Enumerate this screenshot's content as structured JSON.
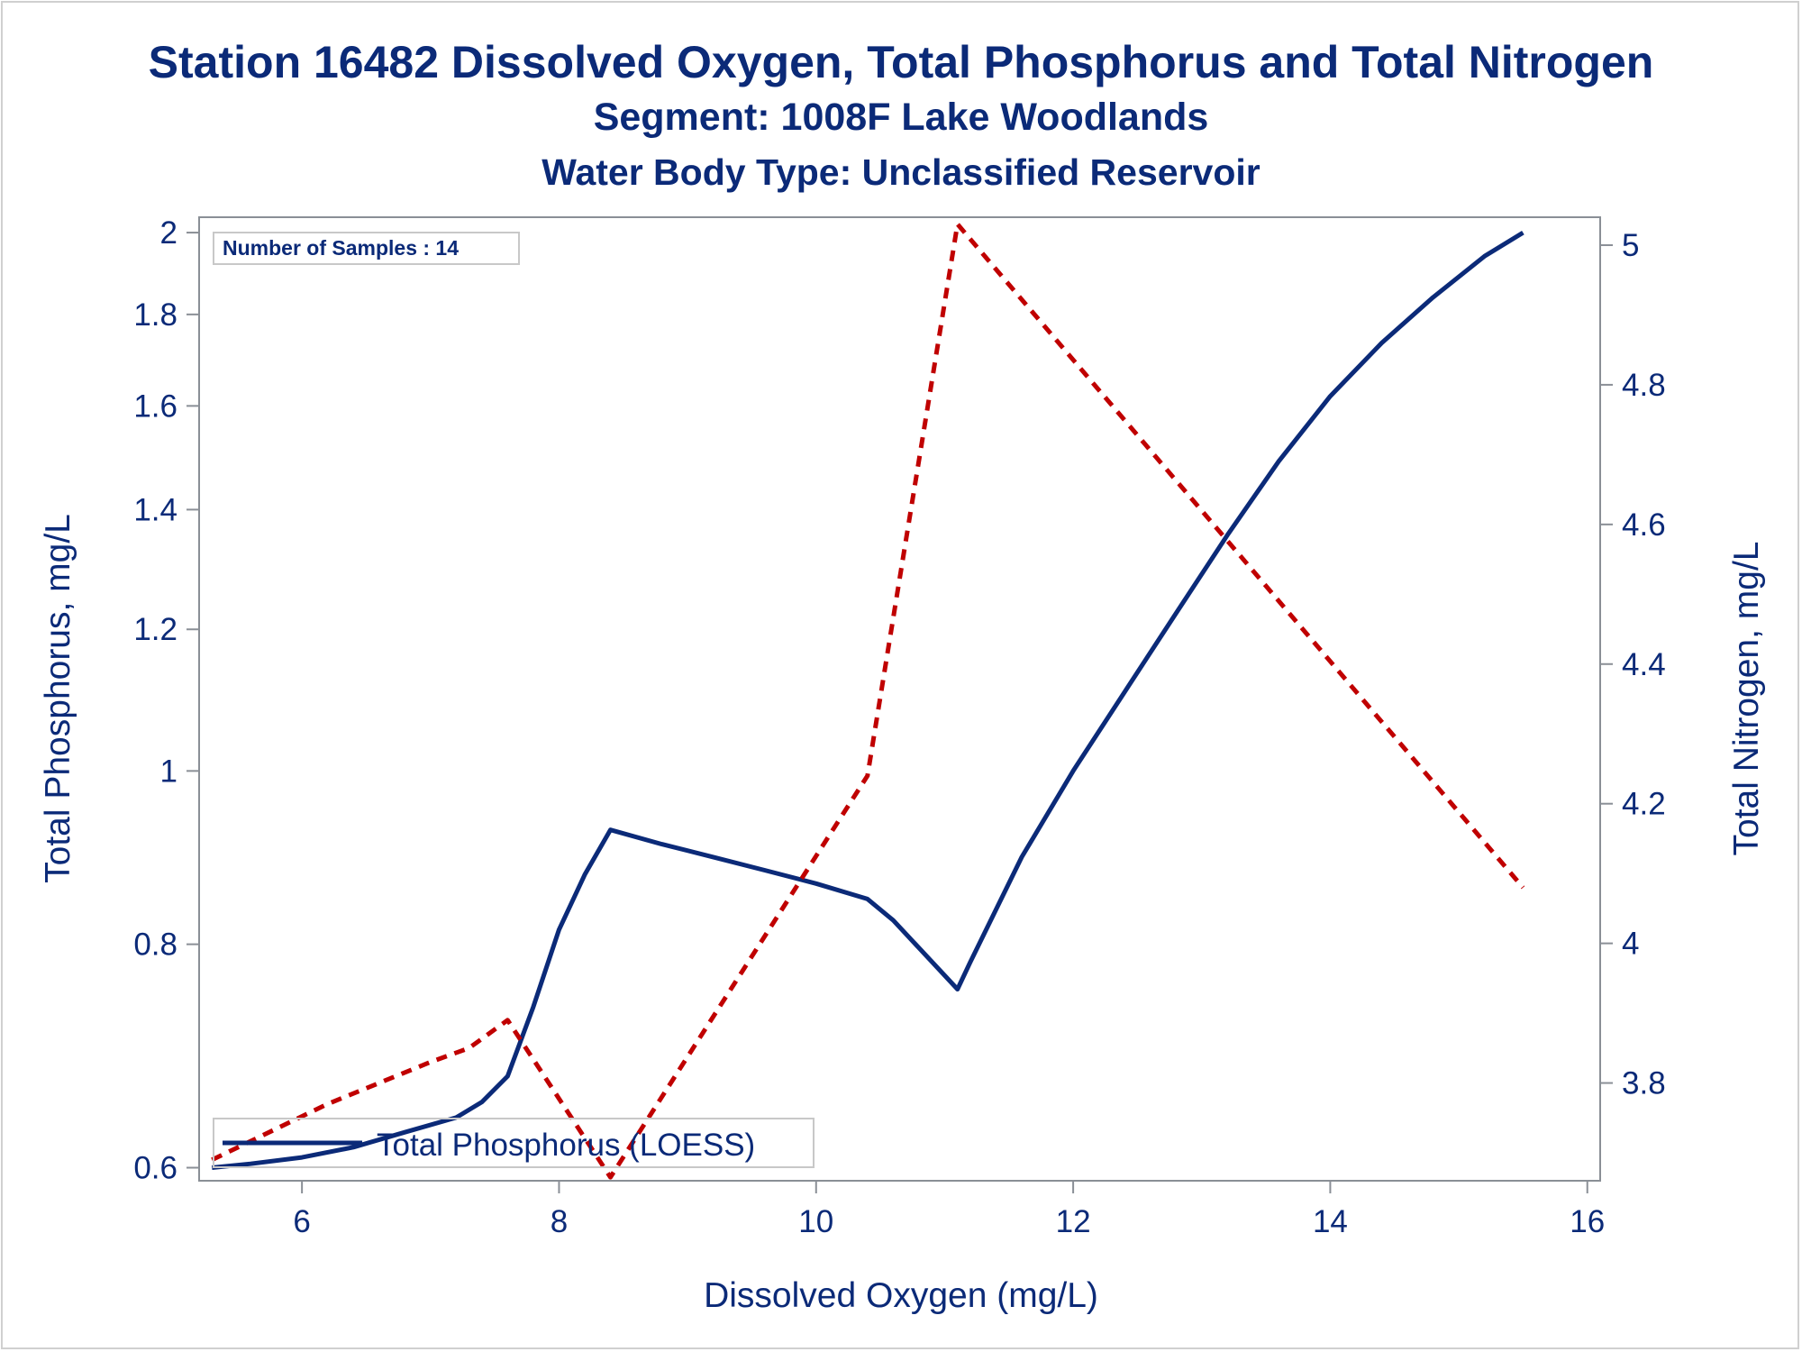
{
  "titles": {
    "line1": "Station 16482  Dissolved Oxygen, Total Phosphorus and Total Nitrogen",
    "line2": "Segment: 1008F  Lake Woodlands",
    "line3": "Water Body Type: Unclassified Reservoir"
  },
  "inset": {
    "text": "Number of Samples : 14"
  },
  "legend": {
    "label": "Total Phosphorus (LOESS)"
  },
  "colors": {
    "text": "#0b2a78",
    "phosphorus": "#0b2a78",
    "nitrogen": "#c00000",
    "axis": "#8a8f96",
    "background": "#ffffff"
  },
  "chart_data": {
    "type": "line",
    "xlabel": "Dissolved Oxygen (mg/L)",
    "ylabel": "Total Phosphorus, mg/L",
    "y2label": "Total Nitrogen, mg/L",
    "xlim": [
      5.2,
      16.1
    ],
    "ylim": [
      0.59,
      2.04
    ],
    "y_scale": "log",
    "y2lim": [
      3.66,
      5.04
    ],
    "xticks": [
      6,
      8,
      10,
      12,
      14,
      16
    ],
    "yticks": [
      0.6,
      0.8,
      1,
      1.2,
      1.4,
      1.6,
      1.8,
      2
    ],
    "y2ticks": [
      3.8,
      4,
      4.2,
      4.4,
      4.6,
      4.8,
      5
    ],
    "grid": false,
    "legend_position": "bottom-left",
    "series": [
      {
        "name": "Total Phosphorus (LOESS)",
        "axis": "left",
        "style": "solid",
        "x": [
          5.3,
          5.6,
          6.0,
          6.4,
          6.8,
          7.2,
          7.4,
          7.6,
          7.8,
          8.0,
          8.2,
          8.4,
          8.8,
          9.2,
          9.6,
          10.0,
          10.4,
          10.6,
          11.1,
          11.2,
          11.6,
          12.0,
          12.4,
          12.8,
          13.2,
          13.6,
          14.0,
          14.4,
          14.8,
          15.2,
          15.5
        ],
        "y": [
          0.6,
          0.603,
          0.608,
          0.616,
          0.628,
          0.64,
          0.653,
          0.675,
          0.738,
          0.815,
          0.875,
          0.927,
          0.91,
          0.895,
          0.88,
          0.865,
          0.848,
          0.825,
          0.755,
          0.782,
          0.895,
          1.0,
          1.107,
          1.225,
          1.355,
          1.49,
          1.62,
          1.735,
          1.84,
          1.94,
          2.0
        ]
      },
      {
        "name": "Total Nitrogen",
        "axis": "right",
        "style": "dashed",
        "x": [
          5.3,
          6.2,
          7.0,
          7.3,
          7.6,
          8.4,
          10.4,
          11.1,
          15.5
        ],
        "y": [
          3.69,
          3.77,
          3.83,
          3.85,
          3.89,
          3.665,
          4.24,
          5.03,
          4.08
        ]
      }
    ]
  }
}
